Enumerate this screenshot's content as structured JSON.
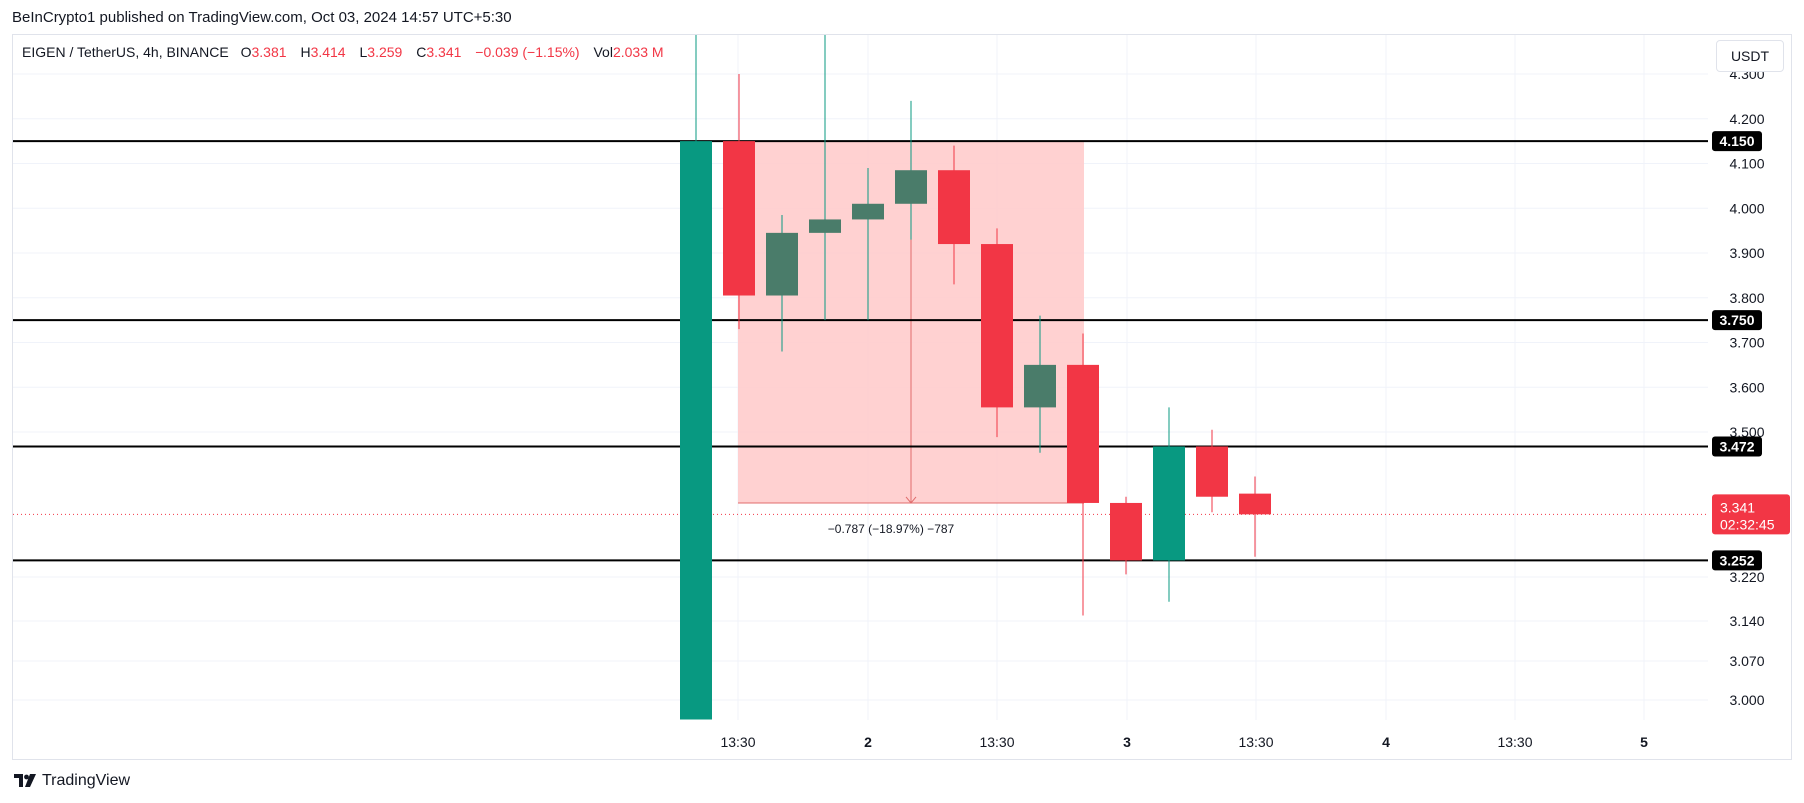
{
  "header": {
    "published_text": "BeInCrypto1 published on TradingView.com, Oct 03, 2024 14:57 UTC+5:30"
  },
  "legend": {
    "symbol": "EIGEN / TetherUS, 4h, BINANCE",
    "open_label": "O",
    "open": "3.381",
    "high_label": "H",
    "high": "3.414",
    "low_label": "L",
    "low": "3.259",
    "close_label": "C",
    "close": "3.341",
    "change": "−0.039 (−1.15%)",
    "vol_label": "Vol",
    "vol": "2.033 M"
  },
  "currency_button": {
    "label": "USDT"
  },
  "footer": {
    "logo_text": "TradingView",
    "logo_icon": "tradingview-logo-icon"
  },
  "colors": {
    "up": "#089981",
    "up_muted": "#4a7c6a",
    "down": "#f23645",
    "measure_fill": "#ffcccc",
    "level_line": "#000000",
    "grid": "#f0f3fa"
  },
  "chart_data": {
    "type": "candlestick",
    "title": "EIGEN / TetherUS, 4h, BINANCE",
    "ylim": [
      2.94,
      4.35
    ],
    "grid": true,
    "y_ticks": [
      "3.000",
      "3.070",
      "3.140",
      "3.220",
      "3.500",
      "3.600",
      "3.700",
      "3.800",
      "3.900",
      "4.000",
      "4.100",
      "4.200",
      "4.300"
    ],
    "x_ticks": [
      "13:30",
      "2",
      "13:30",
      "3",
      "13:30",
      "4",
      "13:30",
      "5"
    ],
    "candles": [
      {
        "o": 2.965,
        "h": 4.55,
        "l": 2.965,
        "c": 4.15,
        "dir": "up"
      },
      {
        "o": 4.15,
        "h": 4.3,
        "l": 3.73,
        "c": 3.805,
        "dir": "down"
      },
      {
        "o": 3.805,
        "h": 3.985,
        "l": 3.68,
        "c": 3.945,
        "dir": "up-muted"
      },
      {
        "o": 3.945,
        "h": 4.55,
        "l": 3.75,
        "c": 3.975,
        "dir": "up-muted"
      },
      {
        "o": 3.975,
        "h": 4.09,
        "l": 3.75,
        "c": 4.01,
        "dir": "up-muted"
      },
      {
        "o": 4.01,
        "h": 4.24,
        "l": 3.93,
        "c": 4.085,
        "dir": "up-muted"
      },
      {
        "o": 4.085,
        "h": 4.14,
        "l": 3.83,
        "c": 3.92,
        "dir": "down"
      },
      {
        "o": 3.92,
        "h": 3.955,
        "l": 3.49,
        "c": 3.555,
        "dir": "down"
      },
      {
        "o": 3.555,
        "h": 3.76,
        "l": 3.46,
        "c": 3.65,
        "dir": "up-muted"
      },
      {
        "o": 3.65,
        "h": 3.72,
        "l": 3.15,
        "c": 3.363,
        "dir": "down"
      },
      {
        "o": 3.363,
        "h": 3.375,
        "l": 3.225,
        "c": 3.252,
        "dir": "down"
      },
      {
        "o": 3.252,
        "h": 3.555,
        "l": 3.175,
        "c": 3.472,
        "dir": "up"
      },
      {
        "o": 3.472,
        "h": 3.505,
        "l": 3.345,
        "c": 3.375,
        "dir": "down"
      },
      {
        "o": 3.381,
        "h": 3.414,
        "l": 3.259,
        "c": 3.341,
        "dir": "down"
      }
    ],
    "levels": [
      "4.150",
      "3.750",
      "3.472",
      "3.252"
    ],
    "current_price": {
      "value": "3.341",
      "countdown": "02:32:45"
    },
    "measure": {
      "from": 4.15,
      "to": 3.363,
      "label": "−0.787 (−18.97%) −787"
    }
  }
}
